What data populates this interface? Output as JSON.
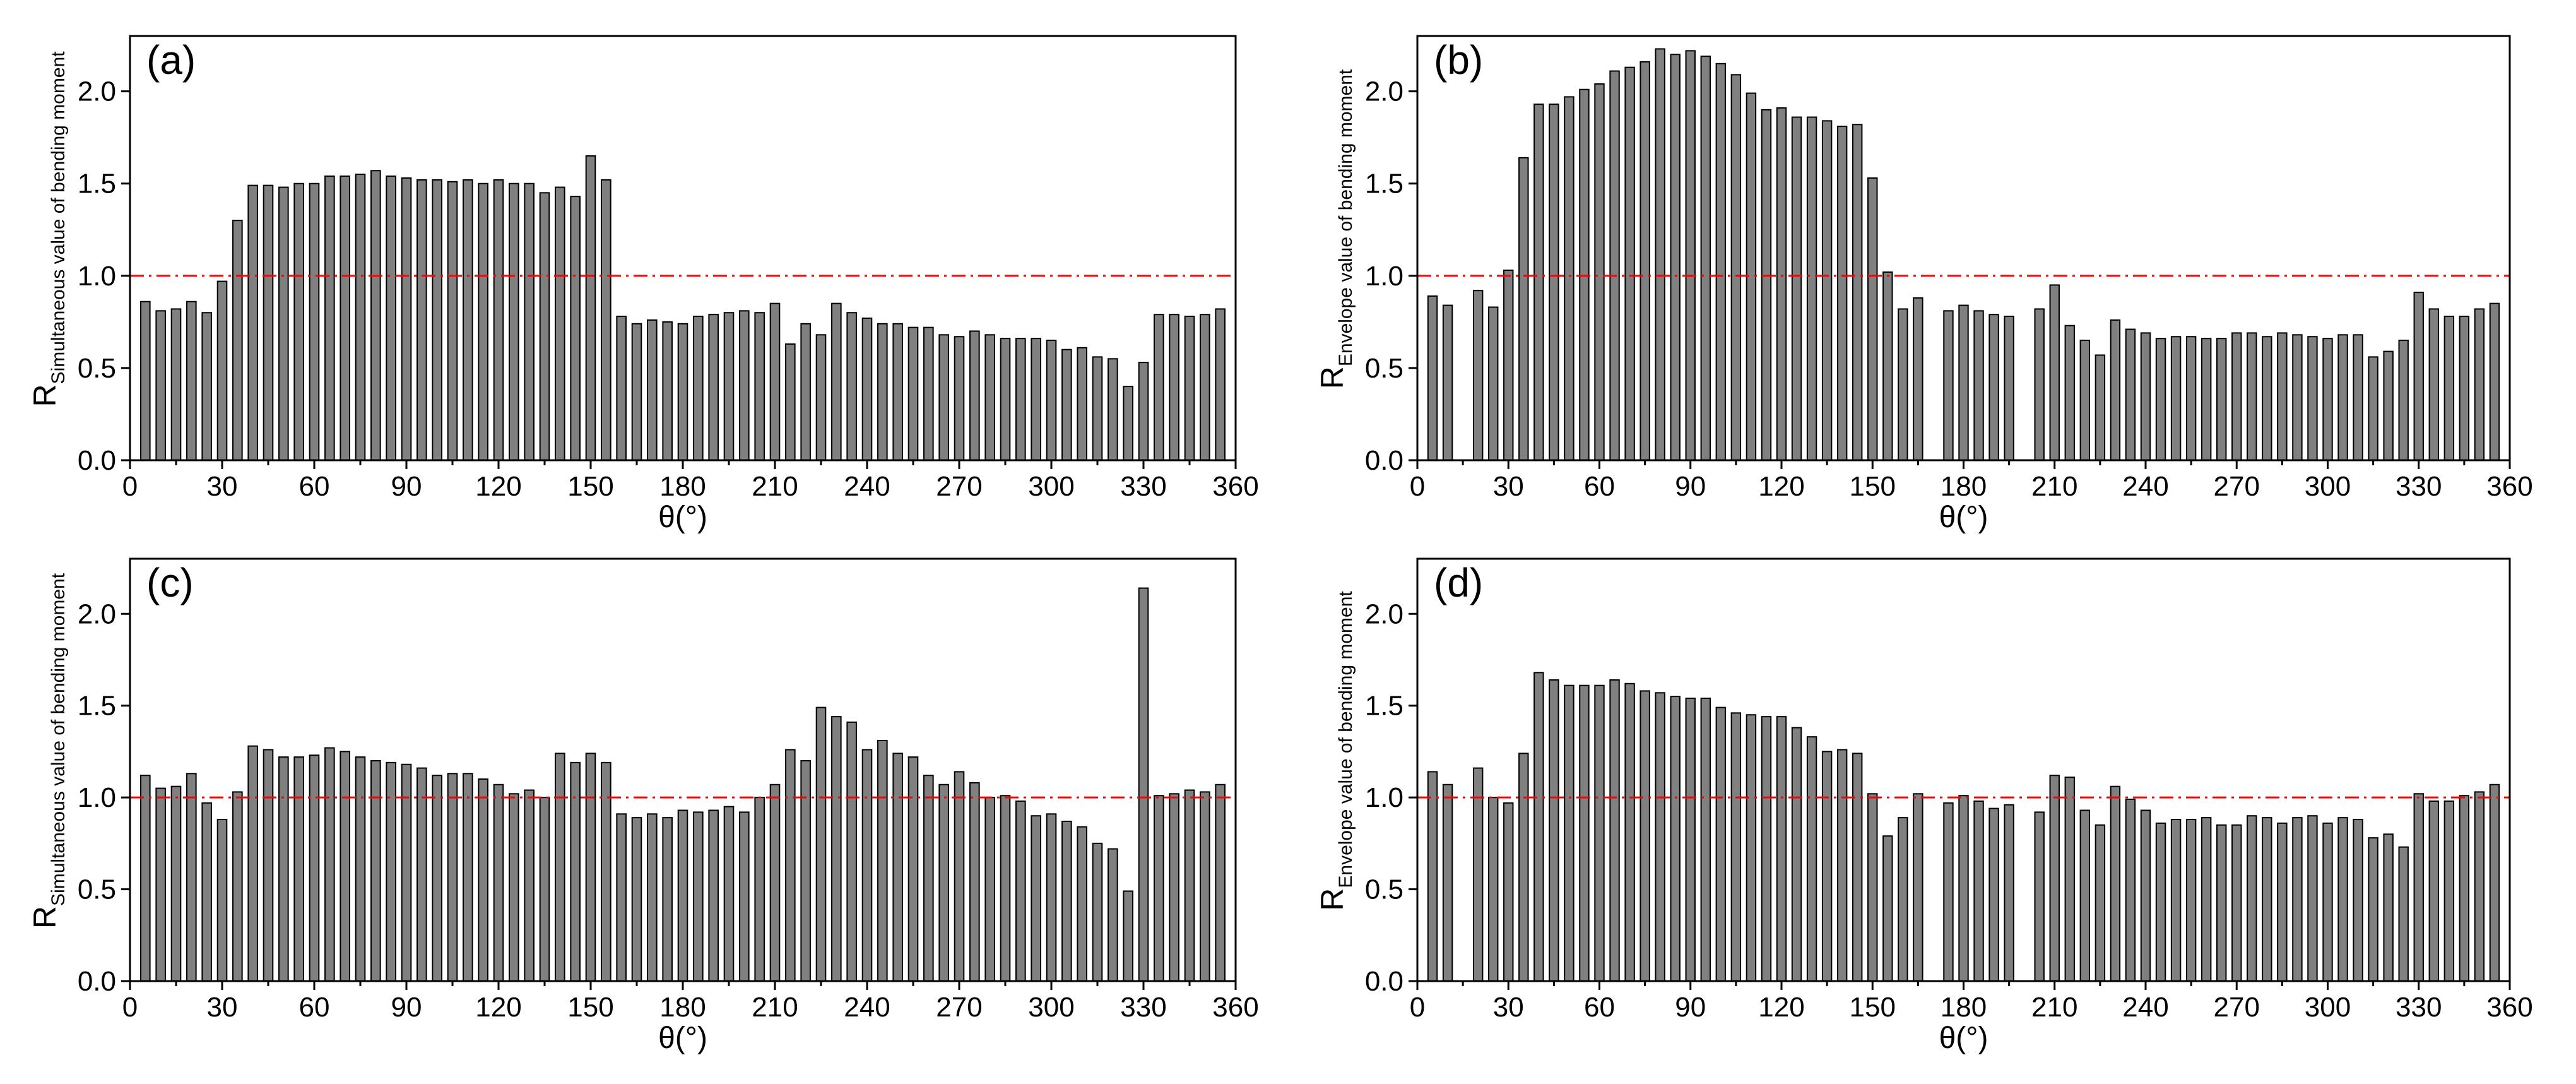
{
  "chart_data": [
    {
      "type": "bar",
      "panel_label": "(a)",
      "xlabel": "θ(°)",
      "ylabel": "R",
      "ylabel_subscript": "Simultaneous value of bending moment",
      "color": "#808080",
      "reference_line": 1,
      "reference_color": "#ff0000",
      "xlim": [
        0,
        360
      ],
      "xticks": [
        0,
        30,
        60,
        90,
        120,
        150,
        180,
        210,
        240,
        270,
        300,
        330,
        360
      ],
      "ylim": [
        0,
        2.3
      ],
      "yticks": [
        {
          "value": 0,
          "label": "0.0"
        },
        0.5,
        {
          "value": 1,
          "label": "1.0"
        },
        1.5,
        {
          "value": 2,
          "label": "2.0"
        }
      ],
      "x": [
        5,
        10,
        15,
        20,
        25,
        30,
        35,
        40,
        45,
        50,
        55,
        60,
        65,
        70,
        75,
        80,
        85,
        90,
        95,
        100,
        105,
        110,
        115,
        120,
        125,
        130,
        135,
        140,
        145,
        150,
        155,
        160,
        165,
        170,
        175,
        180,
        185,
        190,
        195,
        200,
        205,
        210,
        215,
        220,
        225,
        230,
        235,
        240,
        245,
        250,
        255,
        260,
        265,
        270,
        275,
        280,
        285,
        290,
        295,
        300,
        305,
        310,
        315,
        320,
        325,
        330,
        335,
        340,
        345,
        350,
        355
      ],
      "values": [
        0.86,
        0.81,
        0.82,
        0.86,
        0.8,
        0.97,
        1.3,
        1.49,
        1.49,
        1.48,
        1.5,
        1.5,
        1.54,
        1.54,
        1.55,
        1.57,
        1.54,
        1.53,
        1.52,
        1.52,
        1.51,
        1.52,
        1.5,
        1.52,
        1.5,
        1.5,
        1.45,
        1.48,
        1.43,
        1.65,
        1.52,
        0.78,
        0.74,
        0.76,
        0.75,
        0.74,
        0.78,
        0.79,
        0.8,
        0.81,
        0.8,
        0.85,
        0.63,
        0.74,
        0.68,
        0.85,
        0.8,
        0.77,
        0.74,
        0.74,
        0.72,
        0.72,
        0.68,
        0.67,
        0.7,
        0.68,
        0.66,
        0.66,
        0.66,
        0.65,
        0.6,
        0.61,
        0.56,
        0.55,
        0.4,
        0.53,
        0.79,
        0.79,
        0.78,
        0.79,
        0.82
      ]
    },
    {
      "type": "bar",
      "panel_label": "(b)",
      "xlabel": "θ(°)",
      "ylabel": "R",
      "ylabel_subscript": "Envelope value of bending moment",
      "color": "#808080",
      "reference_line": 1,
      "reference_color": "#ff0000",
      "xlim": [
        0,
        360
      ],
      "xticks": [
        0,
        30,
        60,
        90,
        120,
        150,
        180,
        210,
        240,
        270,
        300,
        330,
        360
      ],
      "ylim": [
        0,
        2.3
      ],
      "yticks": [
        {
          "value": 0,
          "label": "0.0"
        },
        0.5,
        {
          "value": 1,
          "label": "1.0"
        },
        1.5,
        {
          "value": 2,
          "label": "2.0"
        }
      ],
      "x": [
        5,
        10,
        15,
        20,
        25,
        30,
        35,
        40,
        45,
        50,
        55,
        60,
        65,
        70,
        75,
        80,
        85,
        90,
        95,
        100,
        105,
        110,
        115,
        120,
        125,
        130,
        135,
        140,
        145,
        150,
        155,
        160,
        165,
        170,
        175,
        180,
        185,
        190,
        195,
        200,
        205,
        210,
        215,
        220,
        225,
        230,
        235,
        240,
        245,
        250,
        255,
        260,
        265,
        270,
        275,
        280,
        285,
        290,
        295,
        300,
        305,
        310,
        315,
        320,
        325,
        330,
        335,
        340,
        345,
        350,
        355
      ],
      "values": [
        0.89,
        0.84,
        null,
        0.92,
        0.83,
        1.03,
        1.64,
        1.93,
        1.93,
        1.97,
        2.01,
        2.04,
        2.11,
        2.13,
        2.16,
        2.23,
        2.2,
        2.22,
        2.19,
        2.15,
        2.09,
        1.99,
        1.9,
        1.91,
        1.86,
        1.86,
        1.84,
        1.81,
        1.82,
        1.53,
        1.02,
        0.82,
        0.88,
        null,
        0.81,
        0.84,
        0.81,
        0.79,
        0.78,
        null,
        0.82,
        0.95,
        0.73,
        0.65,
        0.57,
        0.76,
        0.71,
        0.69,
        0.66,
        0.67,
        0.67,
        0.66,
        0.66,
        0.69,
        0.69,
        0.67,
        0.69,
        0.68,
        0.67,
        0.66,
        0.68,
        0.68,
        0.56,
        0.59,
        0.65,
        0.91,
        0.82,
        0.78,
        0.78,
        0.82,
        0.85
      ]
    },
    {
      "type": "bar",
      "panel_label": "(c)",
      "xlabel": "θ(°)",
      "ylabel": "R",
      "ylabel_subscript": "Simultaneous value of bending moment",
      "color": "#808080",
      "reference_line": 1,
      "reference_color": "#ff0000",
      "xlim": [
        0,
        360
      ],
      "xticks": [
        0,
        30,
        60,
        90,
        120,
        150,
        180,
        210,
        240,
        270,
        300,
        330,
        360
      ],
      "ylim": [
        0,
        2.3
      ],
      "yticks": [
        {
          "value": 0,
          "label": "0.0"
        },
        0.5,
        {
          "value": 1,
          "label": "1.0"
        },
        1.5,
        {
          "value": 2,
          "label": "2.0"
        }
      ],
      "x": [
        5,
        10,
        15,
        20,
        25,
        30,
        35,
        40,
        45,
        50,
        55,
        60,
        65,
        70,
        75,
        80,
        85,
        90,
        95,
        100,
        105,
        110,
        115,
        120,
        125,
        130,
        135,
        140,
        145,
        150,
        155,
        160,
        165,
        170,
        175,
        180,
        185,
        190,
        195,
        200,
        205,
        210,
        215,
        220,
        225,
        230,
        235,
        240,
        245,
        250,
        255,
        260,
        265,
        270,
        275,
        280,
        285,
        290,
        295,
        300,
        305,
        310,
        315,
        320,
        325,
        330,
        335,
        340,
        345,
        350,
        355
      ],
      "values": [
        1.12,
        1.05,
        1.06,
        1.13,
        0.97,
        0.88,
        1.03,
        1.28,
        1.26,
        1.22,
        1.22,
        1.23,
        1.27,
        1.25,
        1.22,
        1.2,
        1.19,
        1.18,
        1.16,
        1.12,
        1.13,
        1.13,
        1.1,
        1.07,
        1.02,
        1.04,
        1.0,
        1.24,
        1.19,
        1.24,
        1.19,
        0.91,
        0.89,
        0.91,
        0.89,
        0.93,
        0.92,
        0.93,
        0.95,
        0.92,
        1.0,
        1.07,
        1.26,
        1.2,
        1.49,
        1.44,
        1.41,
        1.26,
        1.31,
        1.24,
        1.22,
        1.12,
        1.07,
        1.14,
        1.08,
        1.0,
        1.01,
        0.98,
        0.9,
        0.91,
        0.87,
        0.84,
        0.75,
        0.72,
        0.49,
        2.14,
        1.01,
        1.02,
        1.04,
        1.03,
        1.07
      ]
    },
    {
      "type": "bar",
      "panel_label": "(d)",
      "xlabel": "θ(°)",
      "ylabel": "R",
      "ylabel_subscript": "Envelope value of bending moment",
      "color": "#808080",
      "reference_line": 1,
      "reference_color": "#ff0000",
      "xlim": [
        0,
        360
      ],
      "xticks": [
        0,
        30,
        60,
        90,
        120,
        150,
        180,
        210,
        240,
        270,
        300,
        330,
        360
      ],
      "ylim": [
        0,
        2.3
      ],
      "yticks": [
        {
          "value": 0,
          "label": "0.0"
        },
        0.5,
        {
          "value": 1,
          "label": "1.0"
        },
        1.5,
        {
          "value": 2,
          "label": "2.0"
        }
      ],
      "x": [
        5,
        10,
        15,
        20,
        25,
        30,
        35,
        40,
        45,
        50,
        55,
        60,
        65,
        70,
        75,
        80,
        85,
        90,
        95,
        100,
        105,
        110,
        115,
        120,
        125,
        130,
        135,
        140,
        145,
        150,
        155,
        160,
        165,
        170,
        175,
        180,
        185,
        190,
        195,
        200,
        205,
        210,
        215,
        220,
        225,
        230,
        235,
        240,
        245,
        250,
        255,
        260,
        265,
        270,
        275,
        280,
        285,
        290,
        295,
        300,
        305,
        310,
        315,
        320,
        325,
        330,
        335,
        340,
        345,
        350,
        355
      ],
      "values": [
        1.14,
        1.07,
        null,
        1.16,
        1.0,
        0.97,
        1.24,
        1.68,
        1.64,
        1.61,
        1.61,
        1.61,
        1.64,
        1.62,
        1.58,
        1.57,
        1.55,
        1.54,
        1.54,
        1.49,
        1.46,
        1.45,
        1.44,
        1.44,
        1.38,
        1.33,
        1.25,
        1.26,
        1.24,
        1.02,
        0.79,
        0.89,
        1.02,
        null,
        0.97,
        1.01,
        0.98,
        0.94,
        0.96,
        null,
        0.92,
        1.12,
        1.11,
        0.93,
        0.85,
        1.06,
        0.99,
        0.93,
        0.86,
        0.88,
        0.88,
        0.89,
        0.85,
        0.85,
        0.9,
        0.89,
        0.86,
        0.89,
        0.9,
        0.86,
        0.89,
        0.88,
        0.78,
        0.8,
        0.73,
        1.02,
        0.98,
        0.98,
        1.01,
        1.03,
        1.07
      ]
    }
  ]
}
